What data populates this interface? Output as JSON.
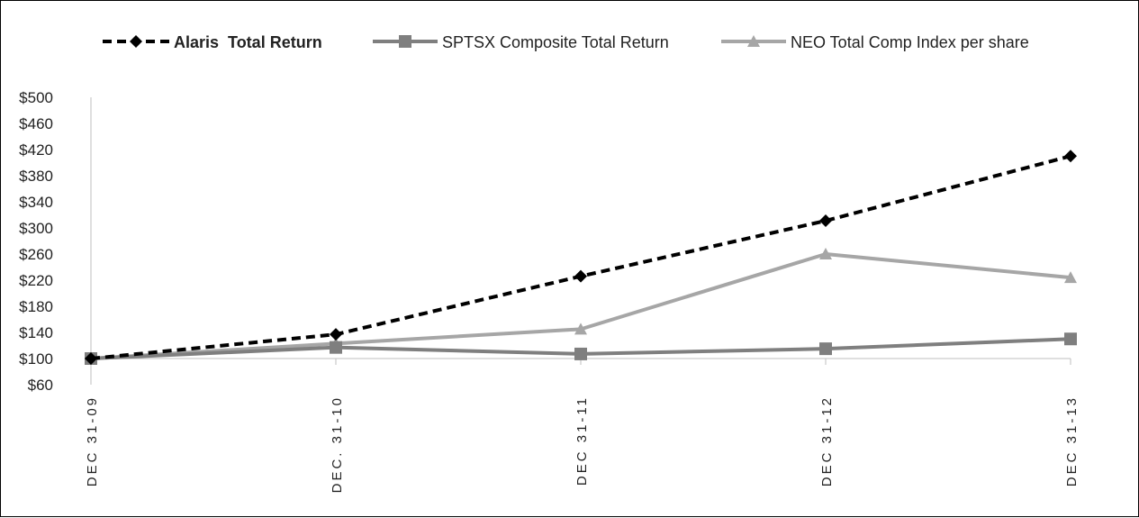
{
  "chart_data": {
    "type": "line",
    "categories": [
      "DEC 31-09",
      "DEC. 31-10",
      "DEC 31-11",
      "DEC 31-12",
      "DEC 31-13"
    ],
    "y_ticks": [
      "$60",
      "$100",
      "$140",
      "$180",
      "$220",
      "$260",
      "$300",
      "$340",
      "$380",
      "$420",
      "$460",
      "$500"
    ],
    "ylim": [
      60,
      500
    ],
    "grid": false,
    "legend_position": "top",
    "series": [
      {
        "name": "Alaris  Total Return",
        "values": [
          100,
          137,
          226,
          311,
          410
        ],
        "color": "#000000",
        "style": "dashed",
        "marker": "diamond",
        "bold_label": true
      },
      {
        "name": "SPTSX Composite Total Return",
        "values": [
          100,
          117,
          107,
          115,
          130
        ],
        "color": "#7f7f7f",
        "style": "solid",
        "marker": "square",
        "bold_label": false
      },
      {
        "name": "NEO Total Comp Index per share",
        "values": [
          100,
          123,
          145,
          260,
          224
        ],
        "color": "#a6a6a6",
        "style": "solid",
        "marker": "triangle",
        "bold_label": false
      }
    ]
  }
}
